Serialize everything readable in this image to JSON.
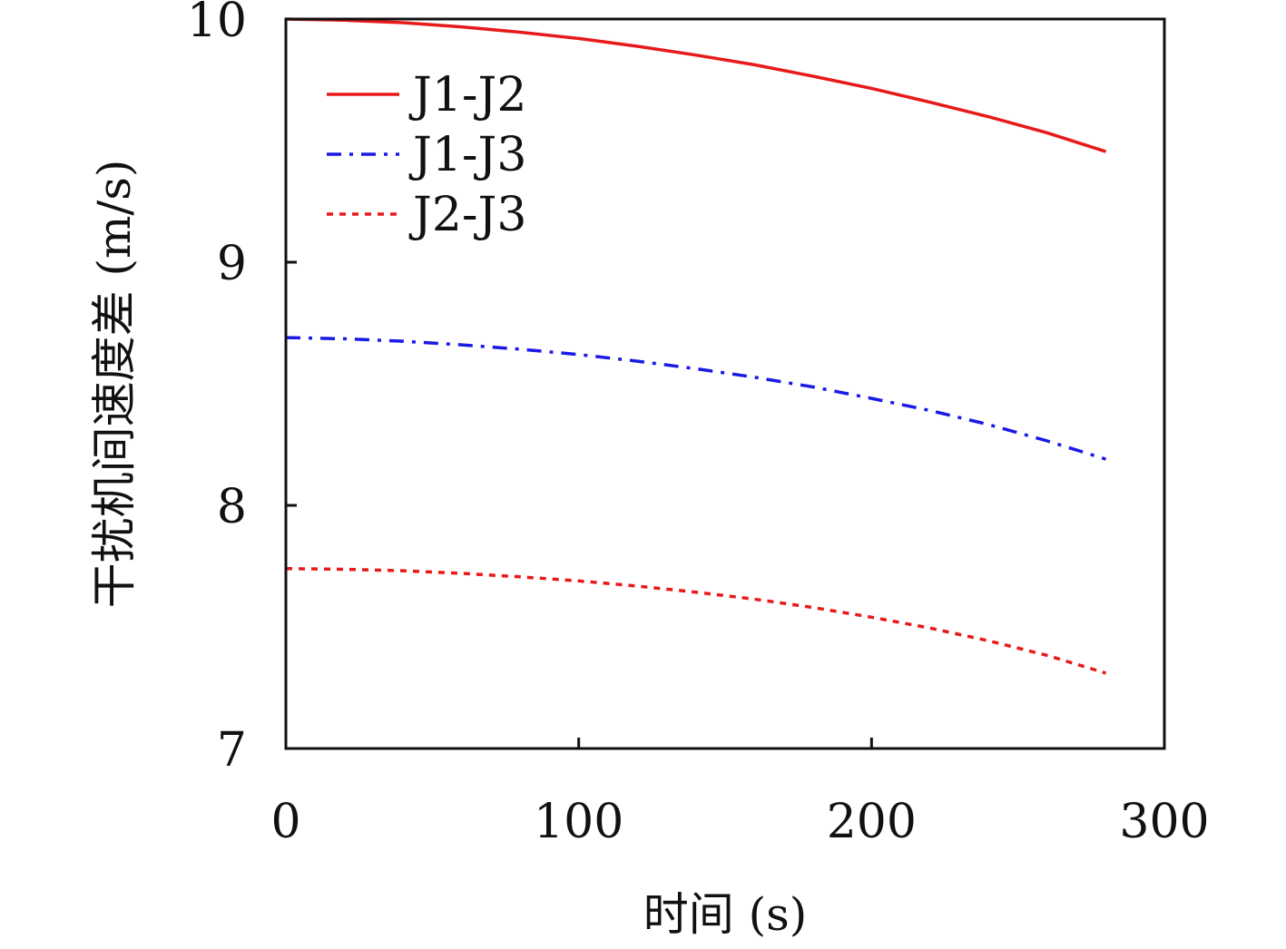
{
  "chart_data": {
    "type": "line",
    "title": "",
    "xlabel": "时间 (s)",
    "ylabel": "干扰机间速度差 (m/s)",
    "xlim": [
      0,
      300
    ],
    "ylim": [
      7,
      10
    ],
    "xticks": [
      "0",
      "100",
      "200",
      "300"
    ],
    "yticks": [
      "7",
      "8",
      "9",
      "10"
    ],
    "grid": false,
    "legend_position": "top-left",
    "x": [
      0,
      20,
      40,
      60,
      80,
      100,
      120,
      140,
      160,
      180,
      200,
      220,
      240,
      260,
      280
    ],
    "series": [
      {
        "name": "J1-J2",
        "color": "#e8191a",
        "style": "solid",
        "values": [
          10.0,
          9.995,
          9.985,
          9.968,
          9.946,
          9.92,
          9.888,
          9.852,
          9.812,
          9.765,
          9.715,
          9.658,
          9.598,
          9.532,
          9.455
        ]
      },
      {
        "name": "J1-J3",
        "color": "#1a1ae6",
        "style": "dashdot",
        "values": [
          8.69,
          8.685,
          8.675,
          8.66,
          8.642,
          8.62,
          8.593,
          8.562,
          8.527,
          8.487,
          8.44,
          8.39,
          8.332,
          8.265,
          8.19
        ]
      },
      {
        "name": "J2-J3",
        "color": "#e8191a",
        "style": "dotted",
        "values": [
          7.74,
          7.737,
          7.731,
          7.72,
          7.706,
          7.689,
          7.668,
          7.643,
          7.614,
          7.58,
          7.54,
          7.495,
          7.443,
          7.383,
          7.31
        ]
      }
    ]
  }
}
